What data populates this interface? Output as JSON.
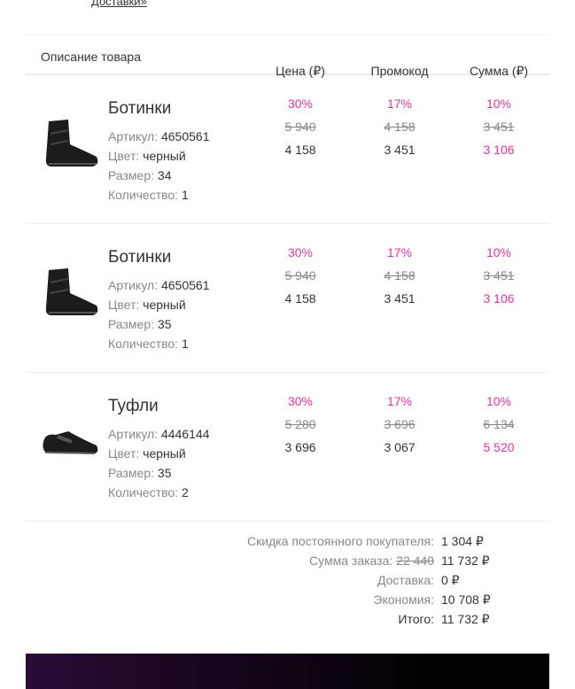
{
  "top_link": "Доставки»",
  "header": {
    "desc": "Описание товара",
    "price": "Цена (₽)",
    "promo": "Промокод",
    "sum": "Сумма (₽)"
  },
  "items": [
    {
      "title": "Ботинки",
      "sku_label": "Артикул:",
      "sku": "4650561",
      "color_label": "Цвет:",
      "color": "черный",
      "size_label": "Размер:",
      "size": "34",
      "qty_label": "Количество:",
      "qty": "1",
      "image": "boot",
      "price": {
        "pct": "30%",
        "old": "5 940",
        "new": "4 158"
      },
      "promo": {
        "pct": "17%",
        "old": "4 158",
        "new": "3 451"
      },
      "sum": {
        "pct": "10%",
        "old": "3 451",
        "new": "3 106"
      }
    },
    {
      "title": "Ботинки",
      "sku_label": "Артикул:",
      "sku": "4650561",
      "color_label": "Цвет:",
      "color": "черный",
      "size_label": "Размер:",
      "size": "35",
      "qty_label": "Количество:",
      "qty": "1",
      "image": "boot",
      "price": {
        "pct": "30%",
        "old": "5 940",
        "new": "4 158"
      },
      "promo": {
        "pct": "17%",
        "old": "4 158",
        "new": "3 451"
      },
      "sum": {
        "pct": "10%",
        "old": "3 451",
        "new": "3 106"
      }
    },
    {
      "title": "Туфли",
      "sku_label": "Артикул:",
      "sku": "4446144",
      "color_label": "Цвет:",
      "color": "черный",
      "size_label": "Размер:",
      "size": "35",
      "qty_label": "Количество:",
      "qty": "2",
      "image": "shoe",
      "price": {
        "pct": "30%",
        "old": "5 280",
        "new": "3 696"
      },
      "promo": {
        "pct": "17%",
        "old": "3 696",
        "new": "3 067"
      },
      "sum": {
        "pct": "10%",
        "old": "6 134",
        "new": "5 520"
      }
    }
  ],
  "summary": {
    "loyalty_label": "Скидка постоянного покупателя:",
    "loyalty": "1 304 ₽",
    "order_label": "Сумма заказа:",
    "order_old": "22 440",
    "order": "11 732 ₽",
    "delivery_label": "Доставка:",
    "delivery": "0 ₽",
    "savings_label": "Экономия:",
    "savings": "10 708 ₽",
    "total_label": "Итого:",
    "total": "11 732 ₽"
  },
  "colors": {
    "accent": "#f0309a"
  }
}
